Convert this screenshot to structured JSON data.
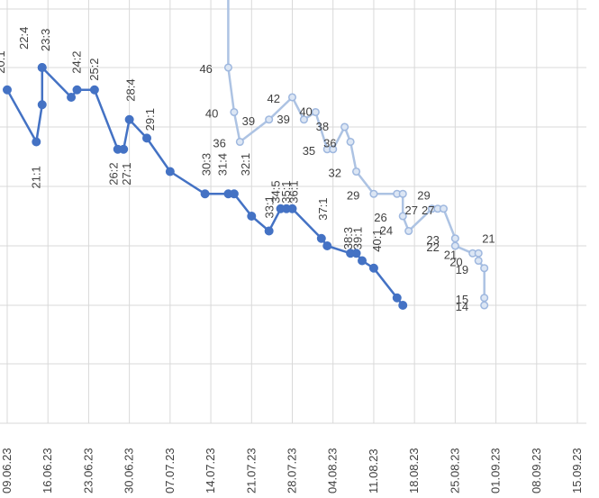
{
  "chart_data": {
    "type": "line",
    "title": "",
    "xlabel": "",
    "ylabel": "",
    "x_ticks": [
      "09.06.23",
      "16.06.23",
      "23.06.23",
      "30.06.23",
      "07.07.23",
      "14.07.23",
      "21.07.23",
      "28.07.23",
      "04.08.23",
      "11.08.23",
      "18.08.23",
      "25.08.23",
      "01.09.23",
      "08.09.23",
      "15.09.23"
    ],
    "xlim": [
      "2023-06-09",
      "2023-09-15"
    ],
    "ylim": [
      -12,
      62
    ],
    "grid": true,
    "legend": "none",
    "series": [
      {
        "color": "#4472c4",
        "marker": "filled",
        "points": [
          {
            "x": "2023-06-09",
            "y": 43.0,
            "label": "20:1"
          },
          {
            "x": "2023-06-14",
            "y": 36.0,
            "label": "21:1"
          },
          {
            "x": "2023-06-15",
            "y": 41.0,
            "label": ""
          },
          {
            "x": "2023-06-15",
            "y": 46.0,
            "label": "22:4"
          },
          {
            "x": "2023-06-15",
            "y": 46.0,
            "label": "23:3"
          },
          {
            "x": "2023-06-20",
            "y": 42.0,
            "label": ""
          },
          {
            "x": "2023-06-21",
            "y": 43.0,
            "label": "24:2"
          },
          {
            "x": "2023-06-24",
            "y": 43.0,
            "label": "25:2"
          },
          {
            "x": "2023-06-28",
            "y": 35.0,
            "label": "26:2"
          },
          {
            "x": "2023-06-29",
            "y": 35.0,
            "label": "27:1"
          },
          {
            "x": "2023-06-30",
            "y": 39.0,
            "label": "28:4"
          },
          {
            "x": "2023-07-03",
            "y": 36.5,
            "label": "29:1"
          },
          {
            "x": "2023-07-07",
            "y": 32.0,
            "label": ""
          },
          {
            "x": "2023-07-13",
            "y": 29.0,
            "label": "30:3"
          },
          {
            "x": "2023-07-17",
            "y": 29.0,
            "label": "31:4"
          },
          {
            "x": "2023-07-18",
            "y": 29.0,
            "label": "32:1"
          },
          {
            "x": "2023-07-21",
            "y": 26.0,
            "label": ""
          },
          {
            "x": "2023-07-24",
            "y": 24.0,
            "label": "33:1"
          },
          {
            "x": "2023-07-26",
            "y": 27.0,
            "label": "34:5"
          },
          {
            "x": "2023-07-27",
            "y": 27.0,
            "label": "35:1"
          },
          {
            "x": "2023-07-28",
            "y": 27.0,
            "label": "36:1"
          },
          {
            "x": "2023-08-02",
            "y": 23.0,
            "label": "37:1"
          },
          {
            "x": "2023-08-03",
            "y": 22.0,
            "label": ""
          },
          {
            "x": "2023-08-07",
            "y": 21.0,
            "label": "38:3"
          },
          {
            "x": "2023-08-08",
            "y": 21.0,
            "label": "39:1"
          },
          {
            "x": "2023-08-09",
            "y": 20.0,
            "label": ""
          },
          {
            "x": "2023-08-11",
            "y": 19.0,
            "label": "40:1"
          },
          {
            "x": "2023-08-15",
            "y": 15.0,
            "label": ""
          },
          {
            "x": "2023-08-16",
            "y": 14.0,
            "label": ""
          }
        ]
      },
      {
        "color": "#adc3e3",
        "marker": "hollow",
        "points": [
          {
            "x": "2023-07-17",
            "y": 62.0,
            "label": ""
          },
          {
            "x": "2023-07-17",
            "y": 46.0,
            "label": "46"
          },
          {
            "x": "2023-07-18",
            "y": 40.0,
            "label": "40"
          },
          {
            "x": "2023-07-19",
            "y": 36.0,
            "label": "36"
          },
          {
            "x": "2023-07-24",
            "y": 39.0,
            "label": "39"
          },
          {
            "x": "2023-07-28",
            "y": 42.0,
            "label": "42"
          },
          {
            "x": "2023-07-30",
            "y": 39.0,
            "label": "39"
          },
          {
            "x": "2023-08-01",
            "y": 40.0,
            "label": "40"
          },
          {
            "x": "2023-08-03",
            "y": 35.0,
            "label": ""
          },
          {
            "x": "2023-08-04",
            "y": 35.0,
            "label": "35"
          },
          {
            "x": "2023-08-06",
            "y": 38.0,
            "label": "38"
          },
          {
            "x": "2023-08-07",
            "y": 36.0,
            "label": "36"
          },
          {
            "x": "2023-08-08",
            "y": 32.0,
            "label": "32"
          },
          {
            "x": "2023-08-11",
            "y": 29.0,
            "label": "29"
          },
          {
            "x": "2023-08-15",
            "y": 29.0,
            "label": ""
          },
          {
            "x": "2023-08-16",
            "y": 29.0,
            "label": "29"
          },
          {
            "x": "2023-08-16",
            "y": 26.0,
            "label": "26"
          },
          {
            "x": "2023-08-17",
            "y": 24.0,
            "label": "24"
          },
          {
            "x": "2023-08-21",
            "y": 27.0,
            "label": "27"
          },
          {
            "x": "2023-08-22",
            "y": 27.0,
            "label": "27"
          },
          {
            "x": "2023-08-23",
            "y": 27.0,
            "label": "27"
          },
          {
            "x": "2023-08-25",
            "y": 23.0,
            "label": "23"
          },
          {
            "x": "2023-08-25",
            "y": 22.0,
            "label": "22"
          },
          {
            "x": "2023-08-28",
            "y": 21.0,
            "label": "21"
          },
          {
            "x": "2023-08-29",
            "y": 21.0,
            "label": "21"
          },
          {
            "x": "2023-08-29",
            "y": 20.0,
            "label": "20"
          },
          {
            "x": "2023-08-30",
            "y": 19.0,
            "label": "19"
          },
          {
            "x": "2023-08-30",
            "y": 15.0,
            "label": "15"
          },
          {
            "x": "2023-08-30",
            "y": 14.0,
            "label": "14"
          }
        ]
      }
    ]
  }
}
